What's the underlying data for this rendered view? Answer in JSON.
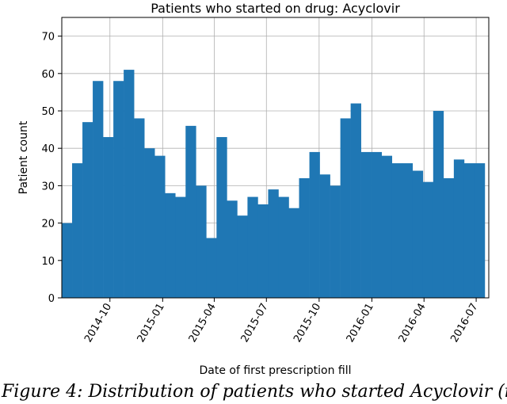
{
  "chart_data": {
    "type": "bar",
    "title": "Patients who started on drug: Acyclovir",
    "xlabel": "Date of first prescription fill",
    "ylabel": "Patient count",
    "ylim": [
      0,
      75
    ],
    "yticks": [
      0,
      10,
      20,
      30,
      40,
      50,
      60,
      70
    ],
    "xlim": [
      "2014-07-09",
      "2016-07-23"
    ],
    "xticks": [
      "2014-10",
      "2015-01",
      "2015-04",
      "2015-07",
      "2015-10",
      "2016-01",
      "2016-04",
      "2016-07"
    ],
    "bin_width_days": 18,
    "grid": true,
    "color": "#1f77b4",
    "values": [
      20,
      36,
      47,
      58,
      43,
      58,
      61,
      48,
      40,
      38,
      28,
      27,
      46,
      30,
      16,
      43,
      26,
      22,
      27,
      25,
      29,
      27,
      24,
      32,
      39,
      33,
      30,
      48,
      52,
      39,
      39,
      38,
      36,
      36,
      34,
      31,
      50,
      32,
      37,
      36,
      36
    ]
  },
  "caption": "Figure 4: Distribution of patients who started Acyclovir (in"
}
